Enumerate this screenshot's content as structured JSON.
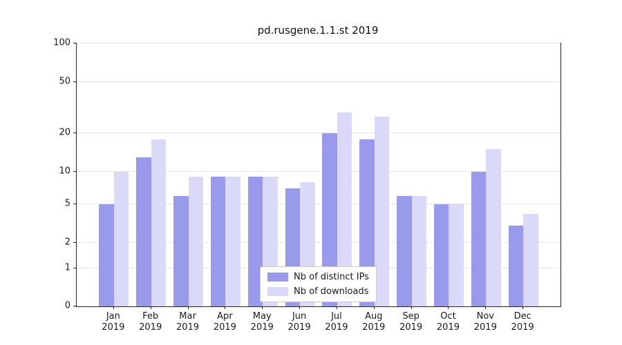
{
  "title": "pd.rusgene.1.1.st 2019",
  "chart_data": {
    "type": "bar",
    "title": "pd.rusgene.1.1.st 2019",
    "categories": [
      "Jan",
      "Feb",
      "Mar",
      "Apr",
      "May",
      "Jun",
      "Jul",
      "Aug",
      "Sep",
      "Oct",
      "Nov",
      "Dec"
    ],
    "category_year": "2019",
    "series": [
      {
        "name": "Nb of distinct IPs",
        "color": "#9a9aec",
        "values": [
          5,
          13,
          6,
          9,
          9,
          7,
          20,
          18,
          6,
          5,
          10,
          3
        ]
      },
      {
        "name": "Nb of downloads",
        "color": "#dadaf8",
        "values": [
          10,
          18,
          9,
          9,
          9,
          8,
          29,
          27,
          6,
          5,
          15,
          4
        ]
      }
    ],
    "y_ticks": [
      0,
      1,
      2,
      5,
      10,
      20,
      50,
      100
    ],
    "ylim": [
      0,
      100
    ],
    "yscale": "symlog",
    "grid": true,
    "legend_position": "lower-center-inside",
    "colors": {
      "distinct_ips": "#9a9aec",
      "downloads": "#dadaf8",
      "gridline": "#e5e5e5",
      "axis": "#222222"
    }
  }
}
